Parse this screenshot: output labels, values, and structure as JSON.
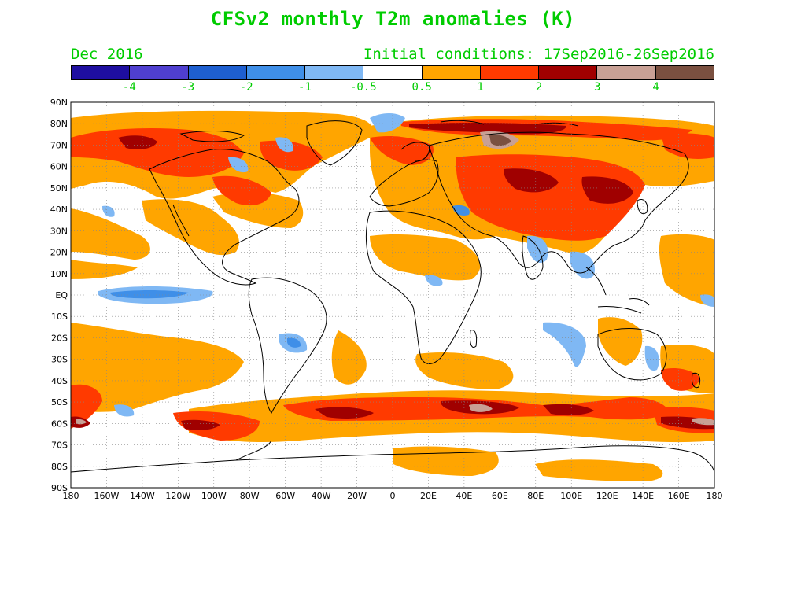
{
  "title": "CFSv2 monthly T2m anomalies (K)",
  "target_month": "Dec 2016",
  "initial_conditions": "Initial conditions: 17Sep2016-26Sep2016",
  "colorbar": {
    "colors": [
      "#1e0ea0",
      "#4f3fd0",
      "#1e5fd0",
      "#3f8fe8",
      "#7fb8f4",
      "#ffffff",
      "#ffa500",
      "#ff3a00",
      "#a00000",
      "#c8a095",
      "#7a5040"
    ],
    "labels": [
      "-4",
      "-3",
      "-2",
      "-1",
      "-0.5",
      "0.5",
      "1",
      "2",
      "3",
      "4"
    ]
  },
  "lat_labels": [
    "90N",
    "80N",
    "70N",
    "60N",
    "50N",
    "40N",
    "30N",
    "20N",
    "10N",
    "EQ",
    "10S",
    "20S",
    "30S",
    "40S",
    "50S",
    "60S",
    "70S",
    "80S",
    "90S"
  ],
  "lon_labels": [
    "180",
    "160W",
    "140W",
    "120W",
    "100W",
    "80W",
    "60W",
    "40W",
    "20W",
    "0",
    "20E",
    "40E",
    "60E",
    "80E",
    "100E",
    "120E",
    "140E",
    "160E",
    "180"
  ],
  "colors": {
    "text_green": "#00cc00",
    "orange": "#ffa500",
    "red": "#ff3a00",
    "dark_red": "#a00000",
    "light_brown": "#c8a095",
    "blue_light": "#7fb8f4",
    "blue_mid": "#3f8fe8"
  }
}
